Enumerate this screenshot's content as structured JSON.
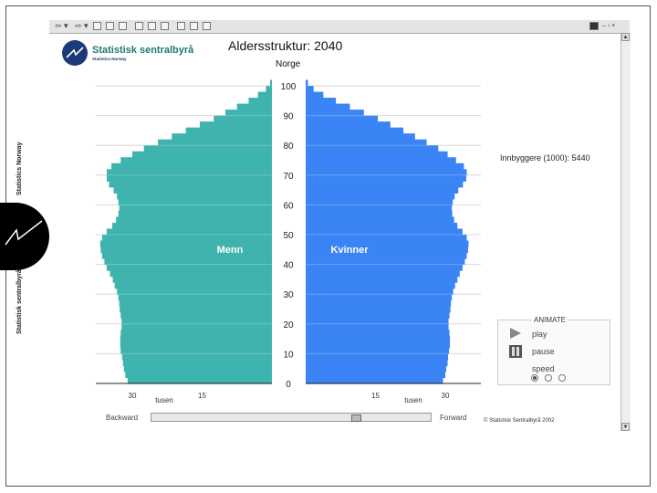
{
  "side_brand": {
    "top_text": "Statistics Norway",
    "bottom_text": "Statistisk sentralbyrå"
  },
  "logo": {
    "name": "Statistisk sentralbyrå",
    "subname": "Statistics Norway"
  },
  "toolbar": {
    "icons": [
      "back-icon",
      "forward-icon",
      "stop-icon",
      "refresh-icon",
      "home-icon",
      "search-icon",
      "favorites-icon",
      "history-icon",
      "mail-icon",
      "print-icon",
      "edit-icon"
    ]
  },
  "header": {
    "title": "Aldersstruktur: 2040",
    "region": "Norge"
  },
  "population_label": "Innbyggere (1000): 5440",
  "animate": {
    "title": "ANIMATE",
    "play": "play",
    "pause": "pause",
    "speed": "speed",
    "speed_selected": 0
  },
  "slider": {
    "backward": "Backward",
    "forward": "Forward",
    "position": 0.74
  },
  "copyright": "© Statistisk Sentralbyrå 2002",
  "colors": {
    "menn": "#3fb3ad",
    "kvinner": "#3a84f5"
  },
  "chart_data": {
    "type": "bar",
    "orientation": "horizontal-pyramid",
    "series": [
      {
        "name": "Menn",
        "x_unit": "tusen",
        "values": [
          [
            0,
            31
          ],
          [
            2,
            31.5
          ],
          [
            4,
            31.8
          ],
          [
            6,
            32
          ],
          [
            8,
            32.2
          ],
          [
            10,
            32.5
          ],
          [
            12,
            32.6
          ],
          [
            14,
            32.6
          ],
          [
            16,
            32.5
          ],
          [
            18,
            32.3
          ],
          [
            20,
            32.3
          ],
          [
            22,
            32.5
          ],
          [
            24,
            32.7
          ],
          [
            26,
            32.8
          ],
          [
            28,
            33
          ],
          [
            30,
            33.3
          ],
          [
            32,
            33.8
          ],
          [
            34,
            34.2
          ],
          [
            36,
            34.8
          ],
          [
            38,
            35.5
          ],
          [
            40,
            36
          ],
          [
            42,
            36.5
          ],
          [
            44,
            36.8
          ],
          [
            46,
            36.9
          ],
          [
            48,
            36.5
          ],
          [
            50,
            35.5
          ],
          [
            52,
            34.3
          ],
          [
            54,
            33.5
          ],
          [
            56,
            33
          ],
          [
            58,
            32.8
          ],
          [
            60,
            33
          ],
          [
            62,
            33.3
          ],
          [
            64,
            34
          ],
          [
            66,
            35
          ],
          [
            68,
            35.5
          ],
          [
            70,
            35.5
          ],
          [
            72,
            34.5
          ],
          [
            74,
            32.5
          ],
          [
            76,
            30
          ],
          [
            78,
            27.5
          ],
          [
            80,
            24.5
          ],
          [
            82,
            21.5
          ],
          [
            84,
            18.5
          ],
          [
            86,
            15.5
          ],
          [
            88,
            12.5
          ],
          [
            90,
            10
          ],
          [
            92,
            7.5
          ],
          [
            94,
            5
          ],
          [
            96,
            3
          ],
          [
            98,
            1.3
          ],
          [
            100,
            0.4
          ]
        ]
      },
      {
        "name": "Kvinner",
        "x_unit": "tusen",
        "values": [
          [
            0,
            29.5
          ],
          [
            2,
            30
          ],
          [
            4,
            30.2
          ],
          [
            6,
            30.5
          ],
          [
            8,
            30.6
          ],
          [
            10,
            30.8
          ],
          [
            12,
            31
          ],
          [
            14,
            31
          ],
          [
            16,
            30.9
          ],
          [
            18,
            30.7
          ],
          [
            20,
            30.7
          ],
          [
            22,
            30.9
          ],
          [
            24,
            31.1
          ],
          [
            26,
            31.2
          ],
          [
            28,
            31.4
          ],
          [
            30,
            31.7
          ],
          [
            32,
            32.1
          ],
          [
            34,
            32.6
          ],
          [
            36,
            33.1
          ],
          [
            38,
            33.7
          ],
          [
            40,
            34.2
          ],
          [
            42,
            34.6
          ],
          [
            44,
            34.9
          ],
          [
            46,
            35
          ],
          [
            48,
            34.6
          ],
          [
            50,
            33.7
          ],
          [
            52,
            32.6
          ],
          [
            54,
            31.9
          ],
          [
            56,
            31.5
          ],
          [
            58,
            31.4
          ],
          [
            60,
            31.6
          ],
          [
            62,
            32
          ],
          [
            64,
            32.8
          ],
          [
            66,
            33.8
          ],
          [
            68,
            34.5
          ],
          [
            70,
            34.6
          ],
          [
            72,
            34
          ],
          [
            74,
            32.3
          ],
          [
            76,
            30.5
          ],
          [
            78,
            28.5
          ],
          [
            80,
            26
          ],
          [
            82,
            23.5
          ],
          [
            84,
            21
          ],
          [
            86,
            18.2
          ],
          [
            88,
            15.5
          ],
          [
            90,
            12.5
          ],
          [
            92,
            9.5
          ],
          [
            94,
            6.5
          ],
          [
            96,
            3.8
          ],
          [
            98,
            1.7
          ],
          [
            100,
            0.5
          ]
        ]
      }
    ],
    "y_ticks": [
      0,
      10,
      20,
      30,
      40,
      50,
      60,
      70,
      80,
      90,
      100
    ],
    "x_ticks_left": [
      30,
      15
    ],
    "x_ticks_right": [
      15,
      30
    ],
    "x_unit_label": "tusen",
    "ylim": [
      0,
      100
    ],
    "xlim": [
      0,
      40
    ],
    "grid": true
  }
}
